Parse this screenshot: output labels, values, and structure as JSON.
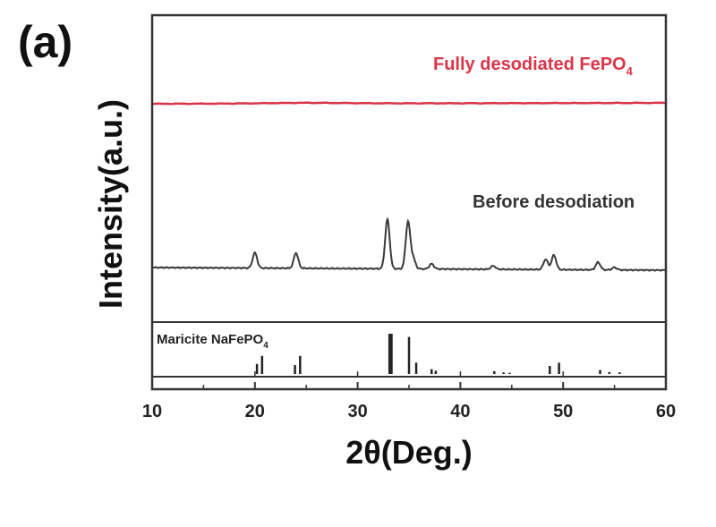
{
  "panel_label": "(a)",
  "chart_data": {
    "type": "line",
    "xlabel": "2θ(Deg.)",
    "ylabel": "Intensity(a.u.)",
    "xlim": [
      10,
      60
    ],
    "x_ticks": [
      10,
      20,
      30,
      40,
      50,
      60
    ],
    "grid": false,
    "colors": {
      "red_trace": "#d9364a",
      "black_trace": "#3a3a3a",
      "reference_bars": "#222222"
    },
    "series": [
      {
        "name": "Fully desodiated FePO",
        "name_subscript": "4",
        "color": "#d9364a",
        "baseline": 0.93,
        "features": [
          {
            "x": 25,
            "height": 0.006,
            "width": 4
          }
        ]
      },
      {
        "name": "Before desodiation",
        "color": "#3a3a3a",
        "baseline": 0.0,
        "peaks": [
          {
            "x": 20.0,
            "h": 0.18
          },
          {
            "x": 24.0,
            "h": 0.18
          },
          {
            "x": 32.9,
            "h": 0.58
          },
          {
            "x": 34.9,
            "h": 0.55
          },
          {
            "x": 35.4,
            "h": 0.12
          },
          {
            "x": 37.2,
            "h": 0.06
          },
          {
            "x": 43.2,
            "h": 0.04
          },
          {
            "x": 48.3,
            "h": 0.12
          },
          {
            "x": 49.1,
            "h": 0.17
          },
          {
            "x": 53.4,
            "h": 0.09
          },
          {
            "x": 55.0,
            "h": 0.03
          }
        ]
      }
    ],
    "reference": {
      "name": "Maricite NaFePO",
      "name_subscript": "4",
      "bars": [
        {
          "x": 20.2,
          "h": 0.25
        },
        {
          "x": 20.7,
          "h": 0.45
        },
        {
          "x": 23.9,
          "h": 0.22
        },
        {
          "x": 24.4,
          "h": 0.45
        },
        {
          "x": 33.1,
          "h": 1.0
        },
        {
          "x": 33.3,
          "h": 1.0
        },
        {
          "x": 35.0,
          "h": 0.92
        },
        {
          "x": 35.7,
          "h": 0.28
        },
        {
          "x": 37.2,
          "h": 0.12
        },
        {
          "x": 37.6,
          "h": 0.08
        },
        {
          "x": 43.3,
          "h": 0.07
        },
        {
          "x": 44.2,
          "h": 0.04
        },
        {
          "x": 44.8,
          "h": 0.03
        },
        {
          "x": 48.7,
          "h": 0.2
        },
        {
          "x": 49.6,
          "h": 0.28
        },
        {
          "x": 53.6,
          "h": 0.1
        },
        {
          "x": 54.5,
          "h": 0.05
        },
        {
          "x": 55.5,
          "h": 0.04
        }
      ]
    }
  }
}
